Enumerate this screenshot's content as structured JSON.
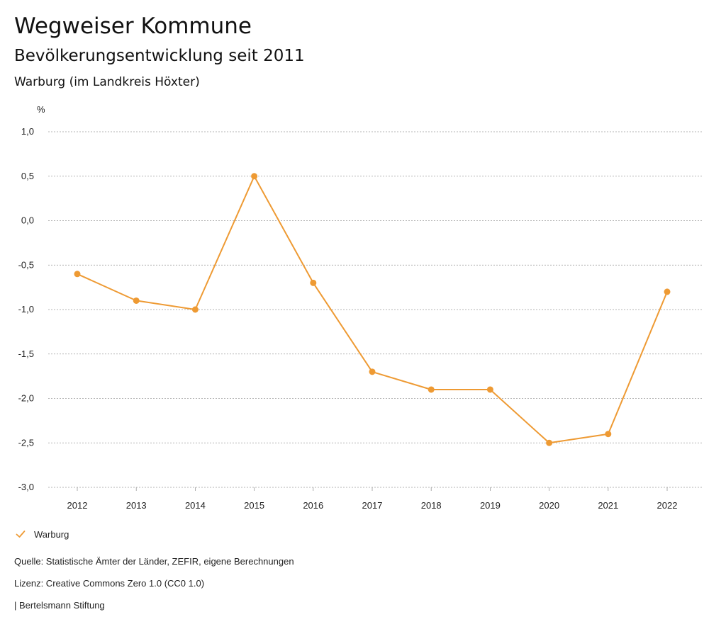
{
  "header": {
    "title": "Wegweiser Kommune",
    "subtitle": "Bevölkerungsentwicklung seit 2011",
    "region": "Warburg (im Landkreis Höxter)"
  },
  "colors": {
    "series": "#EE9A33",
    "grid": "#9a9a9a",
    "text": "#222222"
  },
  "chart_data": {
    "type": "line",
    "title": "Bevölkerungsentwicklung seit 2011",
    "unit": "%",
    "categories": [
      "2012",
      "2013",
      "2014",
      "2015",
      "2016",
      "2017",
      "2018",
      "2019",
      "2020",
      "2021",
      "2022"
    ],
    "series": [
      {
        "name": "Warburg",
        "values": [
          -0.6,
          -0.9,
          -1.0,
          0.5,
          -0.7,
          -1.7,
          -1.9,
          -1.9,
          -2.5,
          -2.4,
          -0.8
        ]
      }
    ],
    "ylim": [
      -3.0,
      1.0
    ],
    "yticks": [
      1.0,
      0.5,
      0.0,
      -0.5,
      -1.0,
      -1.5,
      -2.0,
      -2.5,
      -3.0
    ],
    "ytick_labels": [
      "1,0",
      "0,5",
      "0,0",
      "-0,5",
      "-1,0",
      "-1,5",
      "-2,0",
      "-2,5",
      "-3,0"
    ],
    "grid": true,
    "legend": "bottom-left"
  },
  "legend": {
    "label": "Warburg"
  },
  "footer": {
    "source": "Quelle: Statistische Ämter der Länder, ZEFIR, eigene Berechnungen",
    "license": "Lizenz: Creative Commons Zero 1.0 (CC0 1.0)",
    "publisher": "| Bertelsmann Stiftung"
  }
}
